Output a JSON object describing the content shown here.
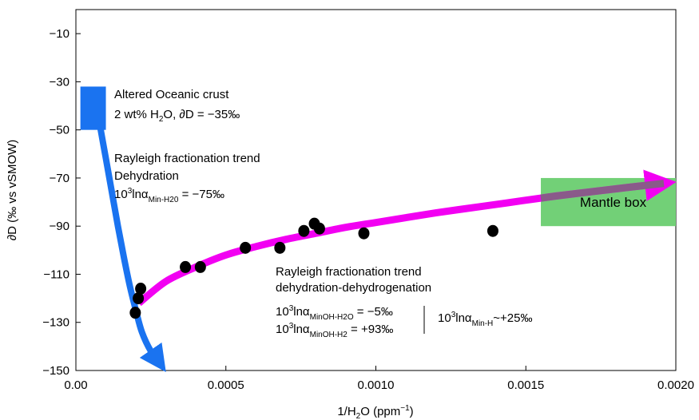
{
  "chart_data": {
    "type": "scatter",
    "xlabel": "1/H2O (ppm−1)",
    "ylabel": "∂D (‰ vs vSMOW)",
    "xlim": [
      0.0,
      0.002
    ],
    "ylim": [
      -150,
      0
    ],
    "x_ticks": [
      "0.00",
      "0.0005",
      "0.0010",
      "0.0015",
      "0.0020"
    ],
    "y_ticks": [
      "−10",
      "−30",
      "−50",
      "−70",
      "−90",
      "−110",
      "−130",
      "−150"
    ],
    "grid": false,
    "series": [
      {
        "values": [
          {
            "x": 0.000198,
            "y": -126
          },
          {
            "x": 0.000208,
            "y": -120
          },
          {
            "x": 0.000216,
            "y": -116
          },
          {
            "x": 0.000365,
            "y": -107
          },
          {
            "x": 0.000415,
            "y": -107
          },
          {
            "x": 0.000565,
            "y": -99
          },
          {
            "x": 0.00068,
            "y": -99
          },
          {
            "x": 0.00076,
            "y": -92
          },
          {
            "x": 0.000795,
            "y": -89
          },
          {
            "x": 0.000812,
            "y": -91
          },
          {
            "x": 0.00096,
            "y": -93
          },
          {
            "x": 0.00139,
            "y": -92
          }
        ],
        "color": "#000000"
      }
    ],
    "trends": {
      "dehydration": {
        "color": "#1a73f0",
        "points": [
          {
            "x": 8e-05,
            "y": -48
          },
          {
            "x": 0.0001,
            "y": -62
          },
          {
            "x": 0.00012,
            "y": -76
          },
          {
            "x": 0.00014,
            "y": -90
          },
          {
            "x": 0.00016,
            "y": -103
          },
          {
            "x": 0.00018,
            "y": -115
          },
          {
            "x": 0.0002,
            "y": -125
          },
          {
            "x": 0.00022,
            "y": -134
          },
          {
            "x": 0.00025,
            "y": -142
          },
          {
            "x": 0.00028,
            "y": -147
          }
        ]
      },
      "dehydrogenation": {
        "color": "#f200f2",
        "points": [
          {
            "x": 0.00021,
            "y": -122
          },
          {
            "x": 0.0003,
            "y": -113
          },
          {
            "x": 0.0004,
            "y": -107
          },
          {
            "x": 0.0005,
            "y": -102
          },
          {
            "x": 0.0006,
            "y": -98.5
          },
          {
            "x": 0.0007,
            "y": -95.5
          },
          {
            "x": 0.0008,
            "y": -93
          },
          {
            "x": 0.0009,
            "y": -90.5
          },
          {
            "x": 0.001,
            "y": -88.5
          },
          {
            "x": 0.0012,
            "y": -84.5
          },
          {
            "x": 0.0014,
            "y": -81
          },
          {
            "x": 0.0016,
            "y": -77.5
          },
          {
            "x": 0.0018,
            "y": -74.5
          },
          {
            "x": 0.00196,
            "y": -72.2
          }
        ]
      }
    },
    "boxes": {
      "oceanic_crust": {
        "x0": 1.5e-05,
        "x1": 0.0001,
        "y0": -50,
        "y1": -32,
        "color": "#1a73f0"
      },
      "mantle": {
        "x0": 0.00155,
        "x1": 0.002,
        "y0": -90,
        "y1": -70,
        "color": "#72d077",
        "label": "Mantle box"
      }
    },
    "annotations": {
      "crust_line1": "Altered Oceanic crust",
      "crust_line2": "2 wt% H2O, ∂D = −35‰",
      "dehyd_line1": "Rayleigh fractionation trend",
      "dehyd_line2": "Dehydration",
      "dehyd_line3": "10³lnαMin-H20 = −75‰",
      "dehydrog_line1": "Rayleigh fractionation trend",
      "dehydrog_line2": "dehydration-dehydrogenation",
      "alpha_oh_h2o": "10³lnαMinOH-H2O = −5‰",
      "alpha_oh_h2": "10³lnαMinOH-H2 = +93‰",
      "alpha_min_h": "10³lnαMin-H~+25‰"
    }
  }
}
